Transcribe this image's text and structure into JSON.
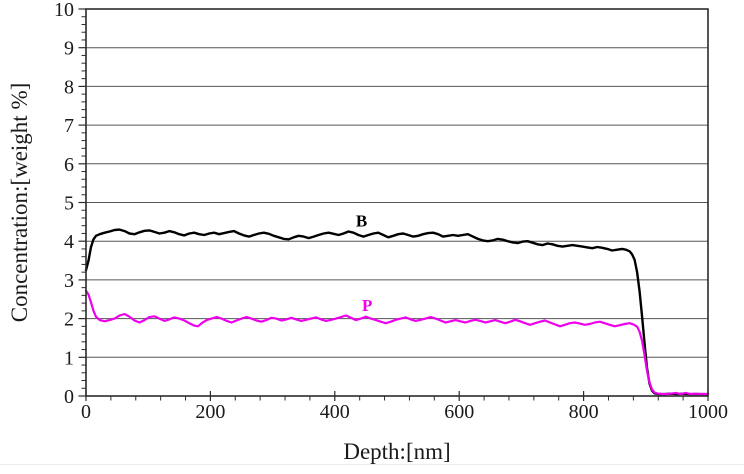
{
  "figure": {
    "background": "#ffffff",
    "bottom_edge_color": "#ececec"
  },
  "chart_data": {
    "type": "line",
    "title": "",
    "xlabel": "Depth:[nm]",
    "ylabel": "Concentration:[weight %]",
    "xlim": [
      0,
      1000
    ],
    "ylim": [
      0,
      10
    ],
    "x_ticks": [
      0,
      200,
      400,
      600,
      800,
      1000
    ],
    "y_ticks": [
      0,
      1,
      2,
      3,
      4,
      5,
      6,
      7,
      8,
      9,
      10
    ],
    "x_minor_step": 40,
    "y_minor_step": 0.2,
    "grid": "horizontal-only",
    "grid_color": "#565656",
    "axis_color": "#2b2b2b",
    "legend": "inline-series-labels",
    "series": [
      {
        "name": "B",
        "label": "B",
        "color": "#000000",
        "label_pos": {
          "x": 443,
          "y": 4.38
        },
        "points": [
          [
            0,
            3.25
          ],
          [
            4,
            3.5
          ],
          [
            8,
            3.85
          ],
          [
            12,
            4.05
          ],
          [
            16,
            4.14
          ],
          [
            22,
            4.18
          ],
          [
            30,
            4.22
          ],
          [
            38,
            4.25
          ],
          [
            46,
            4.29
          ],
          [
            54,
            4.3
          ],
          [
            62,
            4.26
          ],
          [
            70,
            4.2
          ],
          [
            78,
            4.18
          ],
          [
            86,
            4.23
          ],
          [
            94,
            4.27
          ],
          [
            102,
            4.28
          ],
          [
            110,
            4.24
          ],
          [
            118,
            4.2
          ],
          [
            126,
            4.22
          ],
          [
            134,
            4.26
          ],
          [
            142,
            4.23
          ],
          [
            150,
            4.18
          ],
          [
            158,
            4.15
          ],
          [
            166,
            4.2
          ],
          [
            174,
            4.22
          ],
          [
            182,
            4.18
          ],
          [
            190,
            4.16
          ],
          [
            198,
            4.2
          ],
          [
            206,
            4.22
          ],
          [
            214,
            4.18
          ],
          [
            222,
            4.21
          ],
          [
            230,
            4.24
          ],
          [
            238,
            4.26
          ],
          [
            246,
            4.2
          ],
          [
            254,
            4.15
          ],
          [
            262,
            4.12
          ],
          [
            270,
            4.16
          ],
          [
            278,
            4.2
          ],
          [
            286,
            4.22
          ],
          [
            294,
            4.19
          ],
          [
            302,
            4.14
          ],
          [
            310,
            4.1
          ],
          [
            318,
            4.06
          ],
          [
            326,
            4.05
          ],
          [
            334,
            4.1
          ],
          [
            342,
            4.14
          ],
          [
            350,
            4.12
          ],
          [
            358,
            4.08
          ],
          [
            366,
            4.12
          ],
          [
            374,
            4.16
          ],
          [
            382,
            4.2
          ],
          [
            390,
            4.22
          ],
          [
            398,
            4.19
          ],
          [
            406,
            4.16
          ],
          [
            414,
            4.2
          ],
          [
            422,
            4.25
          ],
          [
            430,
            4.22
          ],
          [
            438,
            4.16
          ],
          [
            446,
            4.12
          ],
          [
            454,
            4.16
          ],
          [
            462,
            4.2
          ],
          [
            470,
            4.22
          ],
          [
            478,
            4.16
          ],
          [
            486,
            4.1
          ],
          [
            494,
            4.14
          ],
          [
            502,
            4.18
          ],
          [
            510,
            4.2
          ],
          [
            518,
            4.16
          ],
          [
            526,
            4.12
          ],
          [
            534,
            4.14
          ],
          [
            542,
            4.18
          ],
          [
            550,
            4.21
          ],
          [
            558,
            4.22
          ],
          [
            566,
            4.18
          ],
          [
            574,
            4.12
          ],
          [
            582,
            4.14
          ],
          [
            590,
            4.16
          ],
          [
            598,
            4.14
          ],
          [
            606,
            4.16
          ],
          [
            614,
            4.18
          ],
          [
            622,
            4.12
          ],
          [
            630,
            4.06
          ],
          [
            638,
            4.02
          ],
          [
            646,
            4.0
          ],
          [
            654,
            4.02
          ],
          [
            662,
            4.06
          ],
          [
            670,
            4.04
          ],
          [
            678,
            4.0
          ],
          [
            686,
            3.97
          ],
          [
            694,
            3.95
          ],
          [
            702,
            3.99
          ],
          [
            710,
            4.0
          ],
          [
            718,
            3.96
          ],
          [
            726,
            3.92
          ],
          [
            734,
            3.9
          ],
          [
            742,
            3.94
          ],
          [
            750,
            3.92
          ],
          [
            758,
            3.88
          ],
          [
            766,
            3.86
          ],
          [
            774,
            3.88
          ],
          [
            782,
            3.9
          ],
          [
            790,
            3.88
          ],
          [
            798,
            3.86
          ],
          [
            806,
            3.84
          ],
          [
            814,
            3.82
          ],
          [
            822,
            3.85
          ],
          [
            830,
            3.83
          ],
          [
            838,
            3.8
          ],
          [
            846,
            3.76
          ],
          [
            854,
            3.78
          ],
          [
            862,
            3.8
          ],
          [
            868,
            3.78
          ],
          [
            874,
            3.74
          ],
          [
            878,
            3.66
          ],
          [
            882,
            3.52
          ],
          [
            886,
            3.2
          ],
          [
            890,
            2.7
          ],
          [
            894,
            2.05
          ],
          [
            898,
            1.35
          ],
          [
            902,
            0.72
          ],
          [
            906,
            0.32
          ],
          [
            910,
            0.14
          ],
          [
            914,
            0.07
          ],
          [
            920,
            0.05
          ],
          [
            930,
            0.05
          ],
          [
            940,
            0.06
          ],
          [
            950,
            0.05
          ],
          [
            960,
            0.06
          ],
          [
            970,
            0.05
          ],
          [
            980,
            0.05
          ],
          [
            990,
            0.05
          ],
          [
            1000,
            0.05
          ]
        ]
      },
      {
        "name": "P",
        "label": "P",
        "color": "#ee00ee",
        "label_pos": {
          "x": 452,
          "y": 2.2
        },
        "points": [
          [
            0,
            2.72
          ],
          [
            4,
            2.62
          ],
          [
            8,
            2.42
          ],
          [
            12,
            2.2
          ],
          [
            16,
            2.05
          ],
          [
            22,
            1.96
          ],
          [
            30,
            1.93
          ],
          [
            38,
            1.96
          ],
          [
            46,
            2.0
          ],
          [
            54,
            2.08
          ],
          [
            62,
            2.12
          ],
          [
            70,
            2.05
          ],
          [
            78,
            1.95
          ],
          [
            86,
            1.9
          ],
          [
            94,
            1.96
          ],
          [
            102,
            2.04
          ],
          [
            110,
            2.06
          ],
          [
            118,
            2.0
          ],
          [
            126,
            1.94
          ],
          [
            134,
            1.98
          ],
          [
            142,
            2.03
          ],
          [
            150,
            2.0
          ],
          [
            158,
            1.95
          ],
          [
            166,
            1.88
          ],
          [
            174,
            1.82
          ],
          [
            180,
            1.8
          ],
          [
            186,
            1.88
          ],
          [
            194,
            1.96
          ],
          [
            202,
            2.0
          ],
          [
            210,
            2.04
          ],
          [
            218,
            2.0
          ],
          [
            226,
            1.94
          ],
          [
            234,
            1.9
          ],
          [
            242,
            1.95
          ],
          [
            250,
            2.0
          ],
          [
            258,
            2.04
          ],
          [
            266,
            2.0
          ],
          [
            274,
            1.95
          ],
          [
            282,
            1.92
          ],
          [
            290,
            1.96
          ],
          [
            298,
            2.02
          ],
          [
            306,
            2.0
          ],
          [
            314,
            1.95
          ],
          [
            322,
            1.98
          ],
          [
            330,
            2.02
          ],
          [
            338,
            1.98
          ],
          [
            346,
            1.94
          ],
          [
            354,
            1.97
          ],
          [
            362,
            2.0
          ],
          [
            370,
            2.03
          ],
          [
            378,
            1.98
          ],
          [
            386,
            1.94
          ],
          [
            394,
            1.97
          ],
          [
            402,
            2.0
          ],
          [
            410,
            2.04
          ],
          [
            418,
            2.08
          ],
          [
            426,
            2.02
          ],
          [
            434,
            1.96
          ],
          [
            442,
            2.0
          ],
          [
            450,
            2.05
          ],
          [
            458,
            2.0
          ],
          [
            466,
            1.96
          ],
          [
            474,
            1.92
          ],
          [
            482,
            1.88
          ],
          [
            490,
            1.92
          ],
          [
            498,
            1.97
          ],
          [
            506,
            2.0
          ],
          [
            514,
            2.03
          ],
          [
            522,
            1.98
          ],
          [
            530,
            1.94
          ],
          [
            538,
            1.97
          ],
          [
            546,
            2.0
          ],
          [
            554,
            2.04
          ],
          [
            562,
            2.0
          ],
          [
            570,
            1.95
          ],
          [
            578,
            1.9
          ],
          [
            586,
            1.93
          ],
          [
            594,
            1.96
          ],
          [
            602,
            1.93
          ],
          [
            610,
            1.9
          ],
          [
            618,
            1.94
          ],
          [
            626,
            1.97
          ],
          [
            634,
            1.94
          ],
          [
            642,
            1.9
          ],
          [
            650,
            1.93
          ],
          [
            658,
            1.96
          ],
          [
            666,
            1.92
          ],
          [
            674,
            1.88
          ],
          [
            682,
            1.92
          ],
          [
            690,
            1.97
          ],
          [
            698,
            1.93
          ],
          [
            706,
            1.88
          ],
          [
            714,
            1.84
          ],
          [
            722,
            1.88
          ],
          [
            730,
            1.92
          ],
          [
            738,
            1.95
          ],
          [
            746,
            1.9
          ],
          [
            754,
            1.85
          ],
          [
            762,
            1.8
          ],
          [
            770,
            1.84
          ],
          [
            778,
            1.88
          ],
          [
            786,
            1.9
          ],
          [
            794,
            1.87
          ],
          [
            802,
            1.84
          ],
          [
            810,
            1.86
          ],
          [
            818,
            1.9
          ],
          [
            826,
            1.92
          ],
          [
            834,
            1.88
          ],
          [
            842,
            1.84
          ],
          [
            850,
            1.8
          ],
          [
            858,
            1.83
          ],
          [
            866,
            1.86
          ],
          [
            874,
            1.88
          ],
          [
            880,
            1.85
          ],
          [
            886,
            1.79
          ],
          [
            890,
            1.66
          ],
          [
            894,
            1.42
          ],
          [
            898,
            1.05
          ],
          [
            902,
            0.65
          ],
          [
            906,
            0.35
          ],
          [
            910,
            0.17
          ],
          [
            914,
            0.09
          ],
          [
            920,
            0.06
          ],
          [
            930,
            0.05
          ],
          [
            940,
            0.06
          ],
          [
            948,
            0.08
          ],
          [
            956,
            0.05
          ],
          [
            964,
            0.08
          ],
          [
            972,
            0.05
          ],
          [
            980,
            0.06
          ],
          [
            990,
            0.05
          ],
          [
            1000,
            0.05
          ]
        ]
      }
    ]
  }
}
